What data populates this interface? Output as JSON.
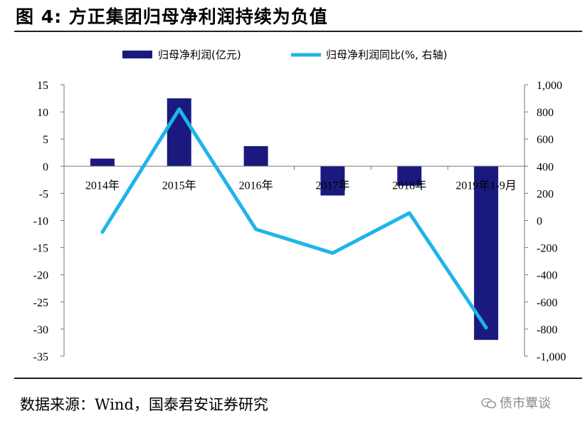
{
  "figure": {
    "title": "图 4:  方正集团归母净利润持续为负值",
    "source": "数据来源：Wind，国泰君安证券研究",
    "brand": "债市覃谈",
    "brand_icon": "wechat-icon"
  },
  "chart_data": {
    "type": "bar+line",
    "categories": [
      "2014年",
      "2015年",
      "2016年",
      "2017年",
      "2018年",
      "2019年1-9月"
    ],
    "series": [
      {
        "name": "归母净利润(亿元)",
        "type": "bar",
        "axis": "left",
        "color": "#1a1a7e",
        "values": [
          1.4,
          12.5,
          3.7,
          -5.4,
          -3.6,
          -32.0
        ]
      },
      {
        "name": "归母净利润同比(%, 右轴)",
        "type": "line",
        "axis": "right",
        "color": "#1eb4ea",
        "values": [
          -85,
          820,
          -65,
          -240,
          55,
          -790
        ]
      }
    ],
    "left_axis": {
      "min": -35,
      "max": 15,
      "step": 5,
      "ticks": [
        "15",
        "10",
        "5",
        "0",
        "-5",
        "-10",
        "-15",
        "-20",
        "-25",
        "-30",
        "-35"
      ]
    },
    "right_axis": {
      "min": -1000,
      "max": 1000,
      "step": 200,
      "ticks": [
        "1,000",
        "800",
        "600",
        "400",
        "200",
        "0",
        "-200",
        "-400",
        "-600",
        "-800",
        "-1,000"
      ]
    },
    "legend_position": "top",
    "grid": false
  }
}
